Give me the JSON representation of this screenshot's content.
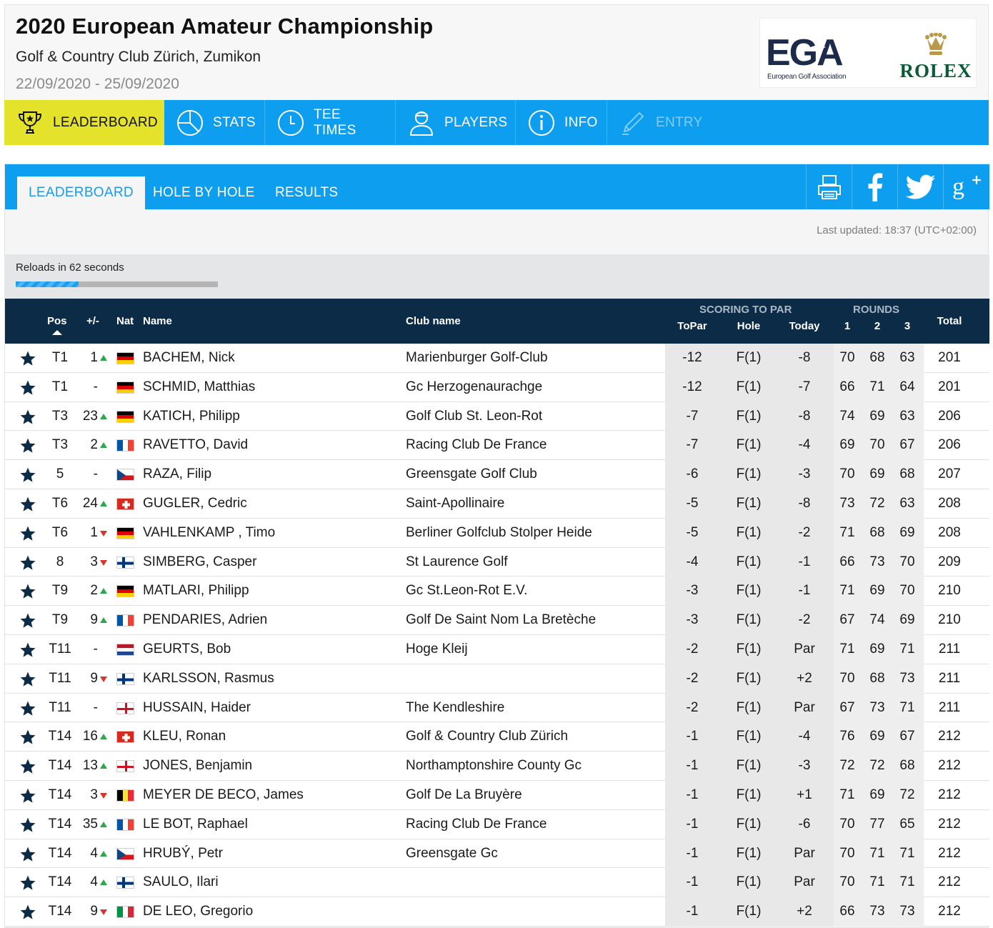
{
  "header": {
    "title": "2020 European Amateur Championship",
    "venue": "Golf & Country Club Zürich, Zumikon",
    "dates": "22/09/2020 - 25/09/2020",
    "logos": {
      "ega_text": "EGA",
      "ega_subtitle": "European Golf Association",
      "rolex_text": "ROLEX"
    }
  },
  "main_nav": [
    {
      "label": "LEADERBOARD",
      "icon": "trophy-icon",
      "state": "active"
    },
    {
      "label": "STATS",
      "icon": "pie-chart-icon",
      "state": "normal"
    },
    {
      "label": "TEE TIMES",
      "icon": "clock-icon",
      "state": "normal"
    },
    {
      "label": "PLAYERS",
      "icon": "player-icon",
      "state": "normal"
    },
    {
      "label": "INFO",
      "icon": "info-icon",
      "state": "normal"
    },
    {
      "label": "ENTRY",
      "icon": "pencil-icon",
      "state": "disabled"
    }
  ],
  "sub_nav": {
    "tabs": [
      "LEADERBOARD",
      "HOLE BY HOLE",
      "RESULTS"
    ],
    "active": "LEADERBOARD",
    "share_icons": [
      "print-icon",
      "facebook-icon",
      "twitter-icon",
      "google-plus-icon"
    ]
  },
  "status": {
    "last_updated": "Last updated: 18:37 (UTC+02:00)",
    "reload_text": "Reloads in 62 seconds",
    "reload_progress": 0.31
  },
  "colors": {
    "nav_blue": "#0e9ef0",
    "active_yellow": "#e5e22b",
    "table_header": "#0c2b47",
    "move_up": "#2aa84a",
    "move_down": "#d9332b"
  },
  "table": {
    "headers": {
      "pos": "Pos",
      "move": "+/-",
      "nat": "Nat",
      "name": "Name",
      "club": "Club name",
      "group_scoring": "SCORING TO PAR",
      "group_rounds": "ROUNDS",
      "topar": "ToPar",
      "hole": "Hole",
      "today": "Today",
      "r1": "1",
      "r2": "2",
      "r3": "3",
      "total": "Total"
    },
    "rows": [
      {
        "pos": "T1",
        "move": "1",
        "dir": "up",
        "nat": "GER",
        "name": "BACHEM, Nick",
        "club": "Marienburger Golf-Club",
        "topar": "-12",
        "hole": "F(1)",
        "today": "-8",
        "r1": "70",
        "r2": "68",
        "r3": "63",
        "total": "201"
      },
      {
        "pos": "T1",
        "move": "-",
        "dir": "",
        "nat": "GER",
        "name": "SCHMID, Matthias",
        "club": "Gc Herzogenaurachge",
        "topar": "-12",
        "hole": "F(1)",
        "today": "-7",
        "r1": "66",
        "r2": "71",
        "r3": "64",
        "total": "201"
      },
      {
        "pos": "T3",
        "move": "23",
        "dir": "up",
        "nat": "GER",
        "name": "KATICH, Philipp",
        "club": "Golf Club St. Leon-Rot",
        "topar": "-7",
        "hole": "F(1)",
        "today": "-8",
        "r1": "74",
        "r2": "69",
        "r3": "63",
        "total": "206"
      },
      {
        "pos": "T3",
        "move": "2",
        "dir": "up",
        "nat": "FRA",
        "name": "RAVETTO, David",
        "club": "Racing Club De France",
        "topar": "-7",
        "hole": "F(1)",
        "today": "-4",
        "r1": "69",
        "r2": "70",
        "r3": "67",
        "total": "206"
      },
      {
        "pos": "5",
        "move": "-",
        "dir": "",
        "nat": "CZE",
        "name": "RAZA, Filip",
        "club": "Greensgate Golf Club",
        "topar": "-6",
        "hole": "F(1)",
        "today": "-3",
        "r1": "70",
        "r2": "69",
        "r3": "68",
        "total": "207"
      },
      {
        "pos": "T6",
        "move": "24",
        "dir": "up",
        "nat": "SUI",
        "name": "GUGLER, Cedric",
        "club": "Saint-Apollinaire",
        "topar": "-5",
        "hole": "F(1)",
        "today": "-8",
        "r1": "73",
        "r2": "72",
        "r3": "63",
        "total": "208"
      },
      {
        "pos": "T6",
        "move": "1",
        "dir": "down",
        "nat": "GER",
        "name": "VAHLENKAMP , Timo",
        "club": "Berliner Golfclub Stolper Heide",
        "topar": "-5",
        "hole": "F(1)",
        "today": "-2",
        "r1": "71",
        "r2": "68",
        "r3": "69",
        "total": "208"
      },
      {
        "pos": "8",
        "move": "3",
        "dir": "down",
        "nat": "FIN",
        "name": "SIMBERG, Casper",
        "club": "St Laurence Golf",
        "topar": "-4",
        "hole": "F(1)",
        "today": "-1",
        "r1": "66",
        "r2": "73",
        "r3": "70",
        "total": "209"
      },
      {
        "pos": "T9",
        "move": "2",
        "dir": "up",
        "nat": "GER",
        "name": "MATLARI, Philipp",
        "club": "Gc St.Leon-Rot E.V.",
        "topar": "-3",
        "hole": "F(1)",
        "today": "-1",
        "r1": "71",
        "r2": "69",
        "r3": "70",
        "total": "210"
      },
      {
        "pos": "T9",
        "move": "9",
        "dir": "up",
        "nat": "FRA",
        "name": "PENDARIES, Adrien",
        "club": "Golf De Saint Nom La Bretèche",
        "topar": "-3",
        "hole": "F(1)",
        "today": "-2",
        "r1": "67",
        "r2": "74",
        "r3": "69",
        "total": "210"
      },
      {
        "pos": "T11",
        "move": "-",
        "dir": "",
        "nat": "NED",
        "name": "GEURTS, Bob",
        "club": "Hoge Kleij",
        "topar": "-2",
        "hole": "F(1)",
        "today": "Par",
        "r1": "71",
        "r2": "69",
        "r3": "71",
        "total": "211"
      },
      {
        "pos": "T11",
        "move": "9",
        "dir": "down",
        "nat": "FIN",
        "name": "KARLSSON, Rasmus",
        "club": "",
        "topar": "-2",
        "hole": "F(1)",
        "today": "+2",
        "r1": "70",
        "r2": "68",
        "r3": "73",
        "total": "211"
      },
      {
        "pos": "T11",
        "move": "-",
        "dir": "",
        "nat": "ENG",
        "name": "HUSSAIN, Haider",
        "club": "The Kendleshire",
        "topar": "-2",
        "hole": "F(1)",
        "today": "Par",
        "r1": "67",
        "r2": "73",
        "r3": "71",
        "total": "211"
      },
      {
        "pos": "T14",
        "move": "16",
        "dir": "up",
        "nat": "SUI",
        "name": "KLEU, Ronan",
        "club": "Golf & Country Club Zürich",
        "topar": "-1",
        "hole": "F(1)",
        "today": "-4",
        "r1": "76",
        "r2": "69",
        "r3": "67",
        "total": "212"
      },
      {
        "pos": "T14",
        "move": "13",
        "dir": "up",
        "nat": "ENG",
        "name": "JONES, Benjamin",
        "club": "Northamptonshire County Gc",
        "topar": "-1",
        "hole": "F(1)",
        "today": "-3",
        "r1": "72",
        "r2": "72",
        "r3": "68",
        "total": "212"
      },
      {
        "pos": "T14",
        "move": "3",
        "dir": "down",
        "nat": "BEL",
        "name": "MEYER DE BECO, James",
        "club": "Golf De La Bruyère",
        "topar": "-1",
        "hole": "F(1)",
        "today": "+1",
        "r1": "71",
        "r2": "69",
        "r3": "72",
        "total": "212"
      },
      {
        "pos": "T14",
        "move": "35",
        "dir": "up",
        "nat": "FRA",
        "name": "LE BOT, Raphael",
        "club": "Racing Club De France",
        "topar": "-1",
        "hole": "F(1)",
        "today": "-6",
        "r1": "70",
        "r2": "77",
        "r3": "65",
        "total": "212"
      },
      {
        "pos": "T14",
        "move": "4",
        "dir": "up",
        "nat": "CZE",
        "name": "HRUBÝ, Petr",
        "club": "Greensgate Gc",
        "topar": "-1",
        "hole": "F(1)",
        "today": "Par",
        "r1": "70",
        "r2": "71",
        "r3": "71",
        "total": "212"
      },
      {
        "pos": "T14",
        "move": "4",
        "dir": "up",
        "nat": "FIN",
        "name": "SAULO, Ilari",
        "club": "",
        "topar": "-1",
        "hole": "F(1)",
        "today": "Par",
        "r1": "70",
        "r2": "71",
        "r3": "71",
        "total": "212"
      },
      {
        "pos": "T14",
        "move": "9",
        "dir": "down",
        "nat": "ITA",
        "name": "DE LEO, Gregorio",
        "club": "",
        "topar": "-1",
        "hole": "F(1)",
        "today": "+2",
        "r1": "66",
        "r2": "73",
        "r3": "73",
        "total": "212"
      }
    ]
  }
}
